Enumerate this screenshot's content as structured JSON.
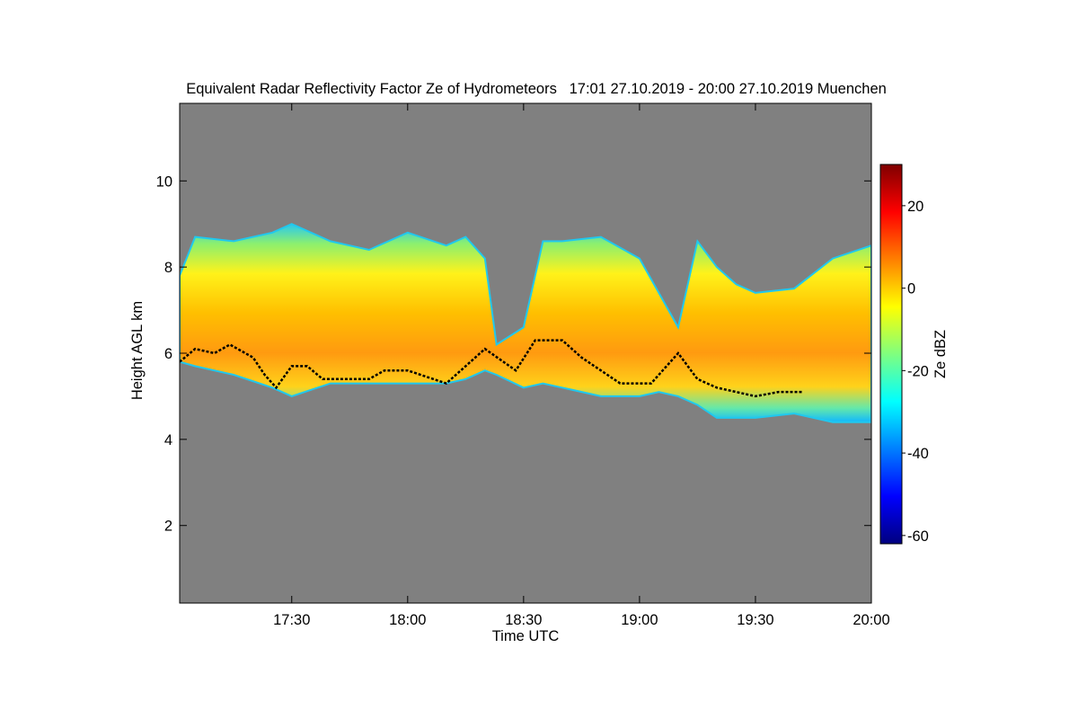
{
  "chart_data": {
    "type": "heatmap",
    "title": "Equivalent Radar Reflectivity Factor Ze of Hydrometeors   17:01 27.10.2019 - 20:00 27.10.2019 Muenchen",
    "xlabel": "Time UTC",
    "ylabel": "Height AGL km",
    "colorbar_label": "Ze dBZ",
    "x_range_min": [
      1021,
      1200
    ],
    "y_range_km": [
      0.2,
      11.8
    ],
    "x_ticks": [
      {
        "min": 1050,
        "label": "17:30"
      },
      {
        "min": 1080,
        "label": "18:00"
      },
      {
        "min": 1110,
        "label": "18:30"
      },
      {
        "min": 1140,
        "label": "19:00"
      },
      {
        "min": 1170,
        "label": "19:30"
      },
      {
        "min": 1200,
        "label": "20:00"
      }
    ],
    "y_ticks": [
      {
        "km": 2,
        "label": "2"
      },
      {
        "km": 4,
        "label": "4"
      },
      {
        "km": 6,
        "label": "6"
      },
      {
        "km": 8,
        "label": "8"
      },
      {
        "km": 10,
        "label": "10"
      }
    ],
    "colorbar_range_dbz": [
      -62,
      30
    ],
    "colorbar_ticks": [
      {
        "dbz": -60,
        "label": "-60"
      },
      {
        "dbz": -40,
        "label": "-40"
      },
      {
        "dbz": -20,
        "label": "-20"
      },
      {
        "dbz": 0,
        "label": "0"
      },
      {
        "dbz": 20,
        "label": "20"
      }
    ],
    "colormap": [
      "#00007f",
      "#0000ff",
      "#007fff",
      "#00ffff",
      "#7fff7f",
      "#ffff00",
      "#ff7f00",
      "#ff0000",
      "#7f0000"
    ],
    "background_color": "#808080",
    "cloud_layer_hint": [
      {
        "t": 1021,
        "base": 5.8,
        "top": 7.8
      },
      {
        "t": 1025,
        "base": 5.7,
        "top": 8.7
      },
      {
        "t": 1035,
        "base": 5.5,
        "top": 8.6
      },
      {
        "t": 1045,
        "base": 5.2,
        "top": 8.8
      },
      {
        "t": 1050,
        "base": 5.0,
        "top": 9.0
      },
      {
        "t": 1060,
        "base": 5.3,
        "top": 8.6
      },
      {
        "t": 1070,
        "base": 5.3,
        "top": 8.4
      },
      {
        "t": 1080,
        "base": 5.3,
        "top": 8.8
      },
      {
        "t": 1090,
        "base": 5.3,
        "top": 8.5
      },
      {
        "t": 1095,
        "base": 5.4,
        "top": 8.7
      },
      {
        "t": 1100,
        "base": 5.6,
        "top": 8.2
      },
      {
        "t": 1103,
        "base": 5.5,
        "top": 6.2
      },
      {
        "t": 1110,
        "base": 5.2,
        "top": 6.6
      },
      {
        "t": 1115,
        "base": 5.3,
        "top": 8.6
      },
      {
        "t": 1120,
        "base": 5.2,
        "top": 8.6
      },
      {
        "t": 1130,
        "base": 5.0,
        "top": 8.7
      },
      {
        "t": 1140,
        "base": 5.0,
        "top": 8.2
      },
      {
        "t": 1145,
        "base": 5.1,
        "top": 7.4
      },
      {
        "t": 1150,
        "base": 5.0,
        "top": 6.6
      },
      {
        "t": 1155,
        "base": 4.8,
        "top": 8.6
      },
      {
        "t": 1160,
        "base": 4.5,
        "top": 8.0
      },
      {
        "t": 1165,
        "base": 4.5,
        "top": 7.6
      },
      {
        "t": 1170,
        "base": 4.5,
        "top": 7.4
      },
      {
        "t": 1180,
        "base": 4.6,
        "top": 7.5
      },
      {
        "t": 1190,
        "base": 4.4,
        "top": 8.2
      },
      {
        "t": 1200,
        "base": 4.4,
        "top": 8.5
      }
    ],
    "melting_layer_km": [
      {
        "t": 1021,
        "h": 5.8
      },
      {
        "t": 1025,
        "h": 6.1
      },
      {
        "t": 1030,
        "h": 6.0
      },
      {
        "t": 1034,
        "h": 6.2
      },
      {
        "t": 1040,
        "h": 5.9
      },
      {
        "t": 1043,
        "h": 5.5
      },
      {
        "t": 1046,
        "h": 5.2
      },
      {
        "t": 1050,
        "h": 5.7
      },
      {
        "t": 1054,
        "h": 5.7
      },
      {
        "t": 1058,
        "h": 5.4
      },
      {
        "t": 1070,
        "h": 5.4
      },
      {
        "t": 1074,
        "h": 5.6
      },
      {
        "t": 1080,
        "h": 5.6
      },
      {
        "t": 1090,
        "h": 5.3
      },
      {
        "t": 1100,
        "h": 6.1
      },
      {
        "t": 1108,
        "h": 5.6
      },
      {
        "t": 1113,
        "h": 6.3
      },
      {
        "t": 1120,
        "h": 6.3
      },
      {
        "t": 1125,
        "h": 5.9
      },
      {
        "t": 1130,
        "h": 5.6
      },
      {
        "t": 1135,
        "h": 5.3
      },
      {
        "t": 1139,
        "h": 5.3
      },
      {
        "t": 1143,
        "h": 5.3
      },
      {
        "t": 1150,
        "h": 6.0
      },
      {
        "t": 1155,
        "h": 5.4
      },
      {
        "t": 1160,
        "h": 5.2
      },
      {
        "t": 1170,
        "h": 5.0
      },
      {
        "t": 1176,
        "h": 5.1
      },
      {
        "t": 1182,
        "h": 5.1
      }
    ]
  }
}
